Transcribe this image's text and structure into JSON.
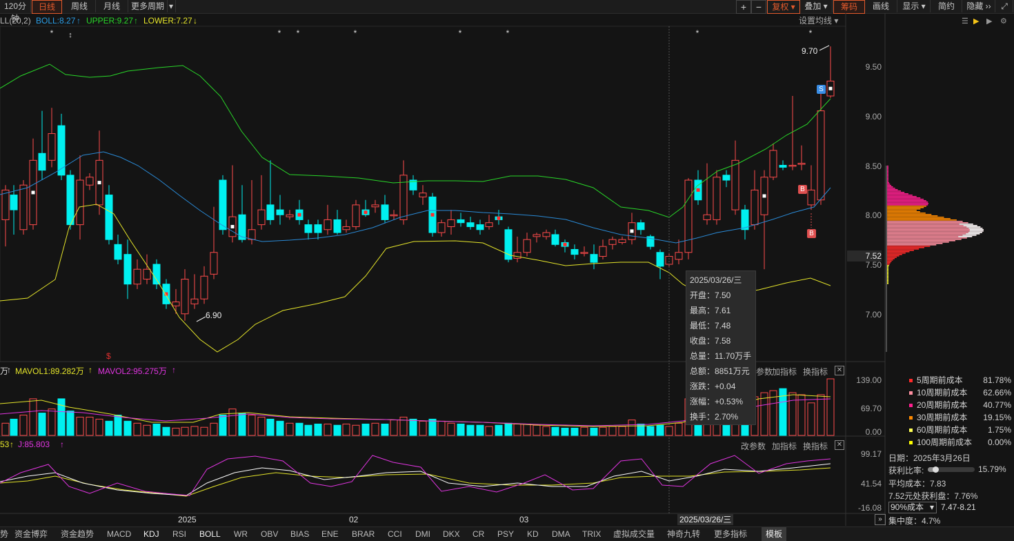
{
  "toolbar": {
    "period_label": "120分钟",
    "tabs": [
      "日线",
      "周线",
      "月线",
      "更多周期"
    ],
    "active_tab": "日线",
    "zoom_in": "+",
    "zoom_out": "−",
    "fuquan": "复权",
    "diejia": "叠加",
    "chouma": "筹码",
    "huaxian": "画线",
    "xianshi": "显示",
    "jianyue": "简约",
    "yincang": "隐藏"
  },
  "indicators": {
    "boll_name": "LL(20,2)",
    "boll": "BOLL:8.27",
    "upper": "UPPER:9.27",
    "lower": "LOWER:7.27",
    "settings": "设置均线",
    "vol_prefix": "万",
    "mavol1": "MAVOL1:89.282万",
    "mavol2": "MAVOL2:95.275万",
    "kdj_k": "53",
    "kdj_j": "J:85.803",
    "params": "改参数",
    "add_indicator": "加指标",
    "switch_indicator": "换指标",
    "params_short": "参数"
  },
  "price_axis": {
    "ticks": [
      "9.50",
      "9.00",
      "8.50",
      "8.00",
      "7.50",
      "7.00"
    ],
    "current": "7.52"
  },
  "vol_axis": [
    "139.00",
    "69.70",
    "0.00"
  ],
  "kdj_axis": [
    "99.17",
    "41.54",
    "-16.08"
  ],
  "annotations": {
    "high": "9.70",
    "low": "6.90",
    "s_badge": "S",
    "b_badge": "B",
    "dollar_mark": "$"
  },
  "date_axis": {
    "labels": [
      "2025",
      "02",
      "03"
    ],
    "cursor_date": "2025/03/26/三"
  },
  "tooltip": {
    "date": "2025/03/26/三",
    "rows": [
      "开盘：7.50",
      "最高：7.61",
      "最低：7.48",
      "收盘：7.58",
      "总量：11.70万手",
      "总额：8851万元",
      "涨跌：+0.04",
      "涨幅：+0.53%",
      "换手：2.70%"
    ]
  },
  "chip_legend": [
    {
      "label": "5周期前成本",
      "pct": "81.78%",
      "color": "#ff2a2a"
    },
    {
      "label": "10周期前成本",
      "pct": "62.66%",
      "color": "#ff8fa0"
    },
    {
      "label": "20周期前成本",
      "pct": "40.77%",
      "color": "#ff1f8f"
    },
    {
      "label": "30周期前成本",
      "pct": "19.15%",
      "color": "#ff8a00"
    },
    {
      "label": "60周期前成本",
      "pct": "1.75%",
      "color": "#ffff55"
    },
    {
      "label": "100周期前成本",
      "pct": "0.00%",
      "color": "#ffff00"
    }
  ],
  "chip_info": {
    "date": "日期：2025年3月26日",
    "profit_ratio_label": "获利比率:",
    "profit_ratio": "15.79%",
    "profit_ratio_value": 0.1579,
    "avg_cost": "平均成本：7.83",
    "profit_at": "7.52元处获利盘：7.76%",
    "cost_select": "90%成本",
    "cost_range": "7.47-8.21",
    "concentration": "集中度：4.7%"
  },
  "bottom_tabs": [
    "资金博弈",
    "资金趋势",
    "MACD",
    "KDJ",
    "RSI",
    "BOLL",
    "WR",
    "OBV",
    "BIAS",
    "ENE",
    "BRAR",
    "CCI",
    "DMI",
    "DKX",
    "CR",
    "PSY",
    "KD",
    "DMA",
    "TRIX",
    "虚拟成交量",
    "神奇九转",
    "更多指标",
    "模板"
  ],
  "bottom_first": "势",
  "colors": {
    "up": "#ff4b4b",
    "down": "#00f0f0",
    "boll_mid": "#2a8ad6",
    "boll_upper": "#29d829",
    "boll_lower": "#e6e62a",
    "accent": "#e35a2c"
  }
}
